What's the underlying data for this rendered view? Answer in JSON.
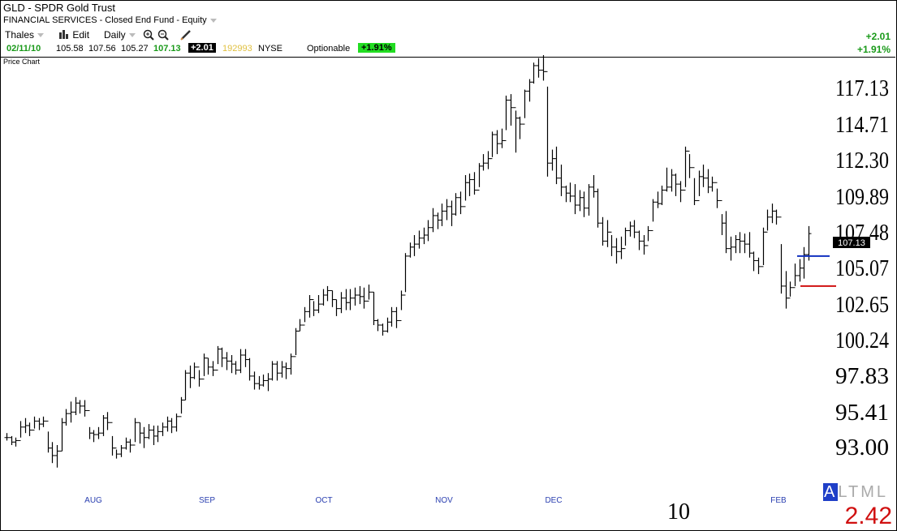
{
  "header": {
    "title": "GLD - SPDR Gold Trust",
    "subtitle": "FINANCIAL SERVICES - Closed End Fund - Equity"
  },
  "toolbar": {
    "account": "Thales",
    "edit": "Edit",
    "period": "Daily"
  },
  "quote": {
    "date": "02/11/10",
    "open": "105.58",
    "high": "107.56",
    "low": "105.27",
    "last": "107.13",
    "change": "+2.01",
    "volume": "192993",
    "exchange": "NYSE",
    "optionable": "Optionable",
    "change_pct": "+1.91%"
  },
  "right_summary": {
    "change": "+2.01",
    "change_pct": "+1.91%"
  },
  "chart_label": "Price Chart",
  "bottom": {
    "year_label": "10",
    "value": "2.42",
    "altml": [
      "A",
      "L",
      "T",
      "M",
      "L"
    ]
  },
  "colors": {
    "up": "#1a9a1a",
    "down": "#d01010",
    "volume": "#e0c040",
    "axis_month": "#2a3fb0",
    "blue_line": "#1030c0",
    "red_line": "#d01010"
  },
  "chart_data": {
    "type": "bar",
    "title": "",
    "ylim": [
      91.5,
      119.5
    ],
    "yticks": [
      "117.13",
      "114.71",
      "112.30",
      "109.89",
      "107.48",
      "105.07",
      "102.65",
      "100.24",
      "97.83",
      "95.41",
      "93.00"
    ],
    "x_months": [
      "AUG",
      "SEP",
      "OCT",
      "NOV",
      "DEC",
      "FEB"
    ],
    "last_price_label": "107.13",
    "blue_line": 105.6,
    "red_line": 103.6,
    "ohlc": [
      [
        93.8,
        93.3,
        93.5
      ],
      [
        93.6,
        93.0,
        93.2
      ],
      [
        93.5,
        92.9,
        93.3
      ],
      [
        94.6,
        93.5,
        94.2
      ],
      [
        94.8,
        93.8,
        94.3
      ],
      [
        94.5,
        93.6,
        94.0
      ],
      [
        94.9,
        94.1,
        94.6
      ],
      [
        94.8,
        94.0,
        94.4
      ],
      [
        94.9,
        94.2,
        94.6
      ],
      [
        93.9,
        92.5,
        92.8
      ],
      [
        93.2,
        91.8,
        92.3
      ],
      [
        93.0,
        91.5,
        92.6
      ],
      [
        94.8,
        92.6,
        94.5
      ],
      [
        95.4,
        94.3,
        95.1
      ],
      [
        95.9,
        94.5,
        95.2
      ],
      [
        96.2,
        95.0,
        95.8
      ],
      [
        96.0,
        95.1,
        95.6
      ],
      [
        96.0,
        94.9,
        95.3
      ],
      [
        94.2,
        93.4,
        93.8
      ],
      [
        94.0,
        93.2,
        93.7
      ],
      [
        94.2,
        93.4,
        93.8
      ],
      [
        95.0,
        93.6,
        94.8
      ],
      [
        95.2,
        94.0,
        94.5
      ],
      [
        93.6,
        92.3,
        92.8
      ],
      [
        92.7,
        92.1,
        92.4
      ],
      [
        93.0,
        92.2,
        92.8
      ],
      [
        93.5,
        92.7,
        93.2
      ],
      [
        93.4,
        92.5,
        93.0
      ],
      [
        94.8,
        93.2,
        94.5
      ],
      [
        94.5,
        93.1,
        93.8
      ],
      [
        94.2,
        92.8,
        93.5
      ],
      [
        94.4,
        93.4,
        94.0
      ],
      [
        94.3,
        93.0,
        93.6
      ],
      [
        94.3,
        93.2,
        93.9
      ],
      [
        94.5,
        93.6,
        94.2
      ],
      [
        94.9,
        93.9,
        94.6
      ],
      [
        94.8,
        93.8,
        94.2
      ],
      [
        95.1,
        93.9,
        94.9
      ],
      [
        96.2,
        95.1,
        96.0
      ],
      [
        98.0,
        96.0,
        97.8
      ],
      [
        98.3,
        96.8,
        97.5
      ],
      [
        98.5,
        97.4,
        98.2
      ],
      [
        98.0,
        96.9,
        97.4
      ],
      [
        99.1,
        97.6,
        98.8
      ],
      [
        98.8,
        97.7,
        98.2
      ],
      [
        98.6,
        97.6,
        98.0
      ],
      [
        99.6,
        98.4,
        99.4
      ],
      [
        99.5,
        98.2,
        98.8
      ],
      [
        99.2,
        98.0,
        98.6
      ],
      [
        99.0,
        97.8,
        98.4
      ],
      [
        98.6,
        97.7,
        98.0
      ],
      [
        99.4,
        97.8,
        99.0
      ],
      [
        99.4,
        98.2,
        98.7
      ],
      [
        98.8,
        97.3,
        97.6
      ],
      [
        97.9,
        96.7,
        97.1
      ],
      [
        97.6,
        96.7,
        97.0
      ],
      [
        97.7,
        96.9,
        97.3
      ],
      [
        97.8,
        96.6,
        97.4
      ],
      [
        98.6,
        97.3,
        98.4
      ],
      [
        98.6,
        97.3,
        97.8
      ],
      [
        98.6,
        97.5,
        98.2
      ],
      [
        98.5,
        97.4,
        98.1
      ],
      [
        99.1,
        97.7,
        98.9
      ],
      [
        100.8,
        99.0,
        100.6
      ],
      [
        101.4,
        100.6,
        101.0
      ],
      [
        102.2,
        101.2,
        101.9
      ],
      [
        103.0,
        101.5,
        102.7
      ],
      [
        102.6,
        101.6,
        102.0
      ],
      [
        103.0,
        101.8,
        102.4
      ],
      [
        103.4,
        102.3,
        103.0
      ],
      [
        103.6,
        102.6,
        103.3
      ],
      [
        103.3,
        102.2,
        102.7
      ],
      [
        102.7,
        101.6,
        102.1
      ],
      [
        103.2,
        101.8,
        102.8
      ],
      [
        103.4,
        102.0,
        102.5
      ],
      [
        103.4,
        102.0,
        102.8
      ],
      [
        103.5,
        102.3,
        103.0
      ],
      [
        103.6,
        102.4,
        102.9
      ],
      [
        103.5,
        102.1,
        102.6
      ],
      [
        103.7,
        102.7,
        103.2
      ],
      [
        103.2,
        101.0,
        101.3
      ],
      [
        101.4,
        100.6,
        101.0
      ],
      [
        101.1,
        100.3,
        100.6
      ],
      [
        101.5,
        100.5,
        101.2
      ],
      [
        102.2,
        100.9,
        101.9
      ],
      [
        102.2,
        100.8,
        101.3
      ],
      [
        103.3,
        102.0,
        103.0
      ],
      [
        105.8,
        103.2,
        105.6
      ],
      [
        106.5,
        105.5,
        106.2
      ],
      [
        107.0,
        105.6,
        106.4
      ],
      [
        107.3,
        106.1,
        106.8
      ],
      [
        107.5,
        106.4,
        107.0
      ],
      [
        108.0,
        106.6,
        107.5
      ],
      [
        108.8,
        107.2,
        108.3
      ],
      [
        108.5,
        107.4,
        108.0
      ],
      [
        109.1,
        107.6,
        108.6
      ],
      [
        109.4,
        108.0,
        108.9
      ],
      [
        109.3,
        107.6,
        108.4
      ],
      [
        109.8,
        108.3,
        109.5
      ],
      [
        109.9,
        108.4,
        108.9
      ],
      [
        111.0,
        109.3,
        110.5
      ],
      [
        111.1,
        109.6,
        110.7
      ],
      [
        111.2,
        109.7,
        110.0
      ],
      [
        111.8,
        110.2,
        111.6
      ],
      [
        112.4,
        111.3,
        111.8
      ],
      [
        112.6,
        111.4,
        112.1
      ],
      [
        113.9,
        112.2,
        113.7
      ],
      [
        114.0,
        112.4,
        113.1
      ],
      [
        114.1,
        112.8,
        113.3
      ],
      [
        116.3,
        114.0,
        116.0
      ],
      [
        116.4,
        114.3,
        115.5
      ],
      [
        115.3,
        112.5,
        114.8
      ],
      [
        114.9,
        113.4,
        114.4
      ],
      [
        116.7,
        114.8,
        116.6
      ],
      [
        117.4,
        115.9,
        117.2
      ],
      [
        118.5,
        117.1,
        118.3
      ],
      [
        118.8,
        117.5,
        118.0
      ],
      [
        119.0,
        117.3,
        117.9
      ],
      [
        116.9,
        110.9,
        111.8
      ],
      [
        112.7,
        111.3,
        112.1
      ],
      [
        112.9,
        110.4,
        110.8
      ],
      [
        111.7,
        109.6,
        110.2
      ],
      [
        110.3,
        109.2,
        109.8
      ],
      [
        110.5,
        109.2,
        109.6
      ],
      [
        110.4,
        108.4,
        109.0
      ],
      [
        110.0,
        108.6,
        109.5
      ],
      [
        109.9,
        108.2,
        108.8
      ],
      [
        110.4,
        108.3,
        110.2
      ],
      [
        111.0,
        109.5,
        109.9
      ],
      [
        110.1,
        107.5,
        107.8
      ],
      [
        108.2,
        106.3,
        106.6
      ],
      [
        108.0,
        106.2,
        107.2
      ],
      [
        107.0,
        105.6,
        106.2
      ],
      [
        106.8,
        105.1,
        105.9
      ],
      [
        106.9,
        105.4,
        106.1
      ],
      [
        107.5,
        106.3,
        107.3
      ],
      [
        107.9,
        106.9,
        107.6
      ],
      [
        108.0,
        106.8,
        107.2
      ],
      [
        107.3,
        106.0,
        106.6
      ],
      [
        107.0,
        105.7,
        106.3
      ],
      [
        107.6,
        106.6,
        107.3
      ],
      [
        109.4,
        107.9,
        109.2
      ],
      [
        109.9,
        108.8,
        109.1
      ],
      [
        110.3,
        109.0,
        110.0
      ],
      [
        111.5,
        109.9,
        110.2
      ],
      [
        111.4,
        109.9,
        111.0
      ],
      [
        111.1,
        109.6,
        110.4
      ],
      [
        110.6,
        109.2,
        110.0
      ],
      [
        112.9,
        110.2,
        112.6
      ],
      [
        112.4,
        110.8,
        111.5
      ],
      [
        110.8,
        109.0,
        109.3
      ],
      [
        111.3,
        109.6,
        110.9
      ],
      [
        111.7,
        110.2,
        110.8
      ],
      [
        111.4,
        109.8,
        110.2
      ],
      [
        110.9,
        109.9,
        110.5
      ],
      [
        110.1,
        108.8,
        109.3
      ],
      [
        108.4,
        107.0,
        107.8
      ],
      [
        108.6,
        105.8,
        106.1
      ],
      [
        106.9,
        105.3,
        106.2
      ],
      [
        107.0,
        105.8,
        106.7
      ],
      [
        107.2,
        105.8,
        106.6
      ],
      [
        107.1,
        105.8,
        106.4
      ],
      [
        107.2,
        105.5,
        105.8
      ],
      [
        105.9,
        104.6,
        105.3
      ],
      [
        105.5,
        104.4,
        104.9
      ],
      [
        107.5,
        105.0,
        107.2
      ],
      [
        108.7,
        107.3,
        108.2
      ],
      [
        109.1,
        107.8,
        108.6
      ],
      [
        108.7,
        107.7,
        108.2
      ],
      [
        106.4,
        103.1,
        103.6
      ],
      [
        104.6,
        102.1,
        102.8
      ],
      [
        103.9,
        102.9,
        103.5
      ],
      [
        105.1,
        103.6,
        104.3
      ],
      [
        105.4,
        103.9,
        104.8
      ],
      [
        106.2,
        104.1,
        105.7
      ],
      [
        107.6,
        105.3,
        107.1
      ]
    ]
  }
}
